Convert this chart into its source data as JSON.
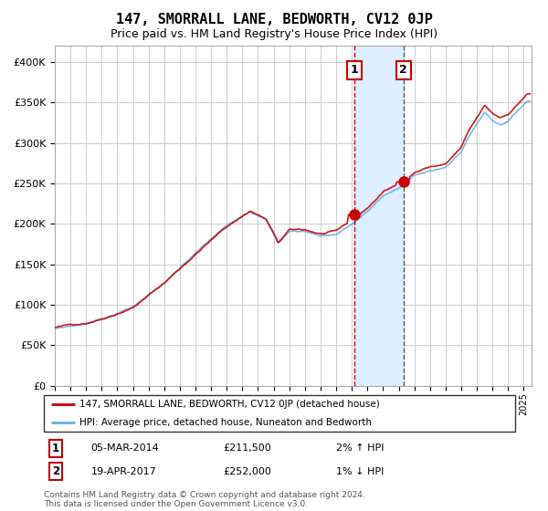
{
  "title": "147, SMORRALL LANE, BEDWORTH, CV12 0JP",
  "subtitle": "Price paid vs. HM Land Registry's House Price Index (HPI)",
  "legend_line1": "147, SMORRALL LANE, BEDWORTH, CV12 0JP (detached house)",
  "legend_line2": "HPI: Average price, detached house, Nuneaton and Bedworth",
  "transaction1_date": "05-MAR-2014",
  "transaction1_price": 211500,
  "transaction1_label": "2% ↑ HPI",
  "transaction2_date": "19-APR-2017",
  "transaction2_price": 252000,
  "transaction2_label": "1% ↓ HPI",
  "footnote": "Contains HM Land Registry data © Crown copyright and database right 2024.\nThis data is licensed under the Open Government Licence v3.0.",
  "hpi_color": "#6ab0e0",
  "price_color": "#cc0000",
  "dot_color": "#cc0000",
  "vline1_color": "#cc0000",
  "vline2_color": "#555555",
  "shade_color": "#dceeff",
  "grid_color": "#cccccc",
  "bg_color": "#ffffff",
  "ylim": [
    0,
    420000
  ],
  "yticks": [
    0,
    50000,
    100000,
    150000,
    200000,
    250000,
    300000,
    350000,
    400000
  ],
  "t1_x": 2014.17,
  "t2_x": 2017.3,
  "xmin": 1995.0,
  "xmax": 2025.5
}
